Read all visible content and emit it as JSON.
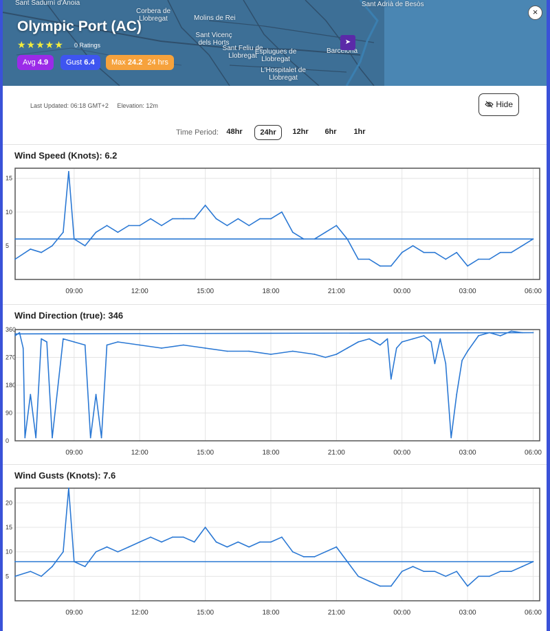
{
  "station": {
    "name": "Olympic Port (AC)",
    "stars": "★★★★★",
    "ratings": "0 Ratings",
    "badges": {
      "avg_label": "Avg",
      "avg_value": "4.9",
      "gust_label": "Gust",
      "gust_value": "6.4",
      "max_label": "Max",
      "max_value": "24.2",
      "max_period": "24 hrs"
    },
    "colors": {
      "avg": "#9b2be8",
      "gust": "#3e55f0",
      "max": "#f6a23c"
    }
  },
  "map": {
    "places": [
      "Sant Sadurní d'Anoia",
      "Corbera de Llobregat",
      "Molins de Rei",
      "Sant Vicenç dels Horts",
      "Sant Feliu de Llobregat",
      "Esplugues de Llobregat",
      "L'Hospitalet de Llobregat",
      "Barcelona",
      "Sant Adrià de Besòs"
    ],
    "pin_icon": "navigation-arrow-icon"
  },
  "controls": {
    "close_label": "×",
    "last_updated": "Last Updated: 06:18 GMT+2",
    "elevation": "Elevation: 12m",
    "hide_label": "Hide",
    "hide_icon": "eye-slash-icon",
    "time_period_label": "Time Period:",
    "periods": [
      "48hr",
      "24hr",
      "12hr",
      "6hr",
      "1hr"
    ],
    "active_period": "24hr"
  },
  "charts": {
    "speed_title": "Wind Speed (Knots): 6.2",
    "direction_title": "Wind Direction (true): 346",
    "gust_title": "Wind Gusts (Knots): 7.6"
  },
  "chart_data": [
    {
      "type": "line",
      "title": "Wind Speed (Knots): 6.2",
      "x_range": [
        "06:18",
        "06:18"
      ],
      "x_ticks": [
        "09:00",
        "12:00",
        "15:00",
        "18:00",
        "21:00",
        "00:00",
        "03:00",
        "06:00"
      ],
      "y_ticks": [
        5,
        10,
        15
      ],
      "ylim": [
        0,
        16.5
      ],
      "grid": true,
      "color": "#2a78d4",
      "series": [
        {
          "x": [
            "06:18",
            "07:00",
            "07:30",
            "08:00",
            "08:30",
            "08:45",
            "09:00",
            "09:30",
            "10:00",
            "10:30",
            "11:00",
            "11:30",
            "12:00",
            "12:30",
            "13:00",
            "13:30",
            "14:00",
            "14:30",
            "15:00",
            "15:30",
            "16:00",
            "16:30",
            "17:00",
            "17:30",
            "18:00",
            "18:30",
            "19:00",
            "19:30",
            "20:00",
            "20:30",
            "21:00",
            "21:30",
            "22:00",
            "22:30",
            "23:00",
            "23:30",
            "00:00",
            "00:30",
            "01:00",
            "01:30",
            "02:00",
            "02:30",
            "03:00",
            "03:30",
            "04:00",
            "04:30",
            "05:00",
            "05:30",
            "06:00",
            "06:18"
          ],
          "values": [
            3,
            4.5,
            4,
            5,
            7,
            16,
            6,
            5,
            7,
            8,
            7,
            8,
            8,
            9,
            8,
            9,
            9,
            9,
            11,
            9,
            8,
            9,
            8,
            9,
            9,
            10,
            7,
            6,
            6,
            7,
            8,
            6,
            3,
            3,
            2,
            2,
            4,
            5,
            4,
            4,
            3,
            4,
            2,
            3,
            3,
            4,
            4,
            5,
            6,
            6
          ]
        }
      ]
    },
    {
      "type": "line",
      "title": "Wind Direction (true): 346",
      "x_range": [
        "06:18",
        "06:18"
      ],
      "x_ticks": [
        "09:00",
        "12:00",
        "15:00",
        "18:00",
        "21:00",
        "00:00",
        "03:00",
        "06:00"
      ],
      "y_ticks": [
        0,
        90,
        180,
        270,
        360
      ],
      "ylim": [
        0,
        360
      ],
      "grid": true,
      "color": "#2a78d4",
      "series": [
        {
          "x": [
            "06:18",
            "06:30",
            "06:40",
            "06:45",
            "07:00",
            "07:15",
            "07:30",
            "07:45",
            "08:00",
            "08:30",
            "09:00",
            "09:30",
            "09:45",
            "10:00",
            "10:15",
            "10:30",
            "11:00",
            "12:00",
            "13:00",
            "14:00",
            "15:00",
            "16:00",
            "17:00",
            "18:00",
            "19:00",
            "20:00",
            "20:30",
            "21:00",
            "21:30",
            "22:00",
            "22:30",
            "23:00",
            "23:20",
            "23:30",
            "23:45",
            "00:00",
            "00:30",
            "01:00",
            "01:20",
            "01:30",
            "01:45",
            "02:00",
            "02:15",
            "02:30",
            "02:45",
            "03:00",
            "03:30",
            "04:00",
            "04:30",
            "05:00",
            "05:30",
            "06:00",
            "06:18"
          ],
          "values": [
            340,
            350,
            300,
            10,
            150,
            10,
            330,
            320,
            10,
            330,
            320,
            310,
            10,
            150,
            10,
            310,
            320,
            310,
            300,
            310,
            300,
            290,
            290,
            280,
            290,
            280,
            270,
            280,
            300,
            320,
            330,
            310,
            330,
            200,
            300,
            320,
            330,
            340,
            320,
            250,
            330,
            250,
            10,
            150,
            260,
            290,
            340,
            350,
            340,
            355,
            350,
            350,
            346
          ]
        }
      ]
    },
    {
      "type": "line",
      "title": "Wind Gusts (Knots): 7.6",
      "x_range": [
        "06:18",
        "06:18"
      ],
      "x_ticks": [
        "09:00",
        "12:00",
        "15:00",
        "18:00",
        "21:00",
        "00:00",
        "03:00",
        "06:00"
      ],
      "y_ticks": [
        5,
        10,
        15,
        20
      ],
      "ylim": [
        0,
        23
      ],
      "grid": true,
      "color": "#2a78d4",
      "series": [
        {
          "x": [
            "06:18",
            "07:00",
            "07:30",
            "08:00",
            "08:30",
            "08:45",
            "09:00",
            "09:30",
            "10:00",
            "10:30",
            "11:00",
            "11:30",
            "12:00",
            "12:30",
            "13:00",
            "13:30",
            "14:00",
            "14:30",
            "15:00",
            "15:30",
            "16:00",
            "16:30",
            "17:00",
            "17:30",
            "18:00",
            "18:30",
            "19:00",
            "19:30",
            "20:00",
            "20:30",
            "21:00",
            "21:30",
            "22:00",
            "22:30",
            "23:00",
            "23:30",
            "00:00",
            "00:30",
            "01:00",
            "01:30",
            "02:00",
            "02:30",
            "03:00",
            "03:30",
            "04:00",
            "04:30",
            "05:00",
            "05:30",
            "06:00",
            "06:18"
          ],
          "values": [
            5,
            6,
            5,
            7,
            10,
            23,
            8,
            7,
            10,
            11,
            10,
            11,
            12,
            13,
            12,
            13,
            13,
            12,
            15,
            12,
            11,
            12,
            11,
            12,
            12,
            13,
            10,
            9,
            9,
            10,
            11,
            8,
            5,
            4,
            3,
            3,
            6,
            7,
            6,
            6,
            5,
            6,
            3,
            5,
            5,
            6,
            6,
            7,
            8,
            8
          ]
        }
      ]
    }
  ]
}
